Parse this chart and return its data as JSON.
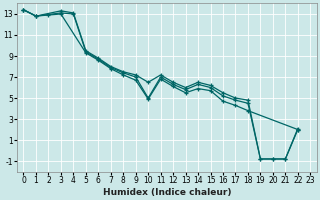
{
  "xlabel": "Humidex (Indice chaleur)",
  "bg_color": "#cce8e8",
  "line_color": "#006666",
  "grid_color": "#ffffff",
  "xlim": [
    -0.5,
    23.5
  ],
  "ylim": [
    -2,
    14
  ],
  "xticks": [
    0,
    1,
    2,
    3,
    4,
    5,
    6,
    7,
    8,
    9,
    10,
    11,
    12,
    13,
    14,
    15,
    16,
    17,
    18,
    19,
    20,
    21,
    22,
    23
  ],
  "yticks": [
    -1,
    1,
    3,
    5,
    7,
    9,
    11,
    13
  ],
  "curve1_x": [
    0,
    1,
    3,
    4,
    5,
    6,
    7,
    8,
    9,
    10,
    11,
    12,
    13,
    14,
    15,
    16,
    17,
    18,
    19,
    20,
    21,
    22
  ],
  "curve1_y": [
    13.4,
    12.8,
    13.3,
    13.1,
    9.5,
    8.8,
    8.0,
    7.5,
    7.2,
    6.5,
    7.2,
    6.5,
    6.0,
    6.5,
    6.2,
    5.5,
    5.0,
    4.8,
    -0.8,
    -0.8,
    -0.8,
    2.1
  ],
  "curve2_x": [
    0,
    1,
    3,
    4,
    5,
    6,
    7,
    8,
    9,
    10,
    11,
    12,
    13,
    14,
    15,
    16,
    17,
    18,
    19,
    20,
    21,
    22
  ],
  "curve2_y": [
    13.4,
    12.8,
    13.1,
    13.0,
    9.4,
    8.7,
    7.9,
    7.4,
    7.0,
    5.0,
    7.0,
    6.3,
    5.8,
    6.3,
    6.0,
    5.2,
    4.8,
    4.5,
    -0.8,
    -0.8,
    -0.8,
    2.0
  ],
  "curve3_x": [
    0,
    1,
    2,
    3,
    5,
    6,
    7,
    8,
    9,
    10,
    11,
    12,
    13,
    14,
    15,
    16,
    17,
    18,
    22
  ],
  "curve3_y": [
    13.4,
    12.8,
    12.9,
    13.0,
    9.3,
    8.6,
    7.8,
    7.2,
    6.7,
    4.9,
    6.8,
    6.1,
    5.5,
    5.9,
    5.7,
    4.7,
    4.3,
    3.8,
    2.0
  ]
}
